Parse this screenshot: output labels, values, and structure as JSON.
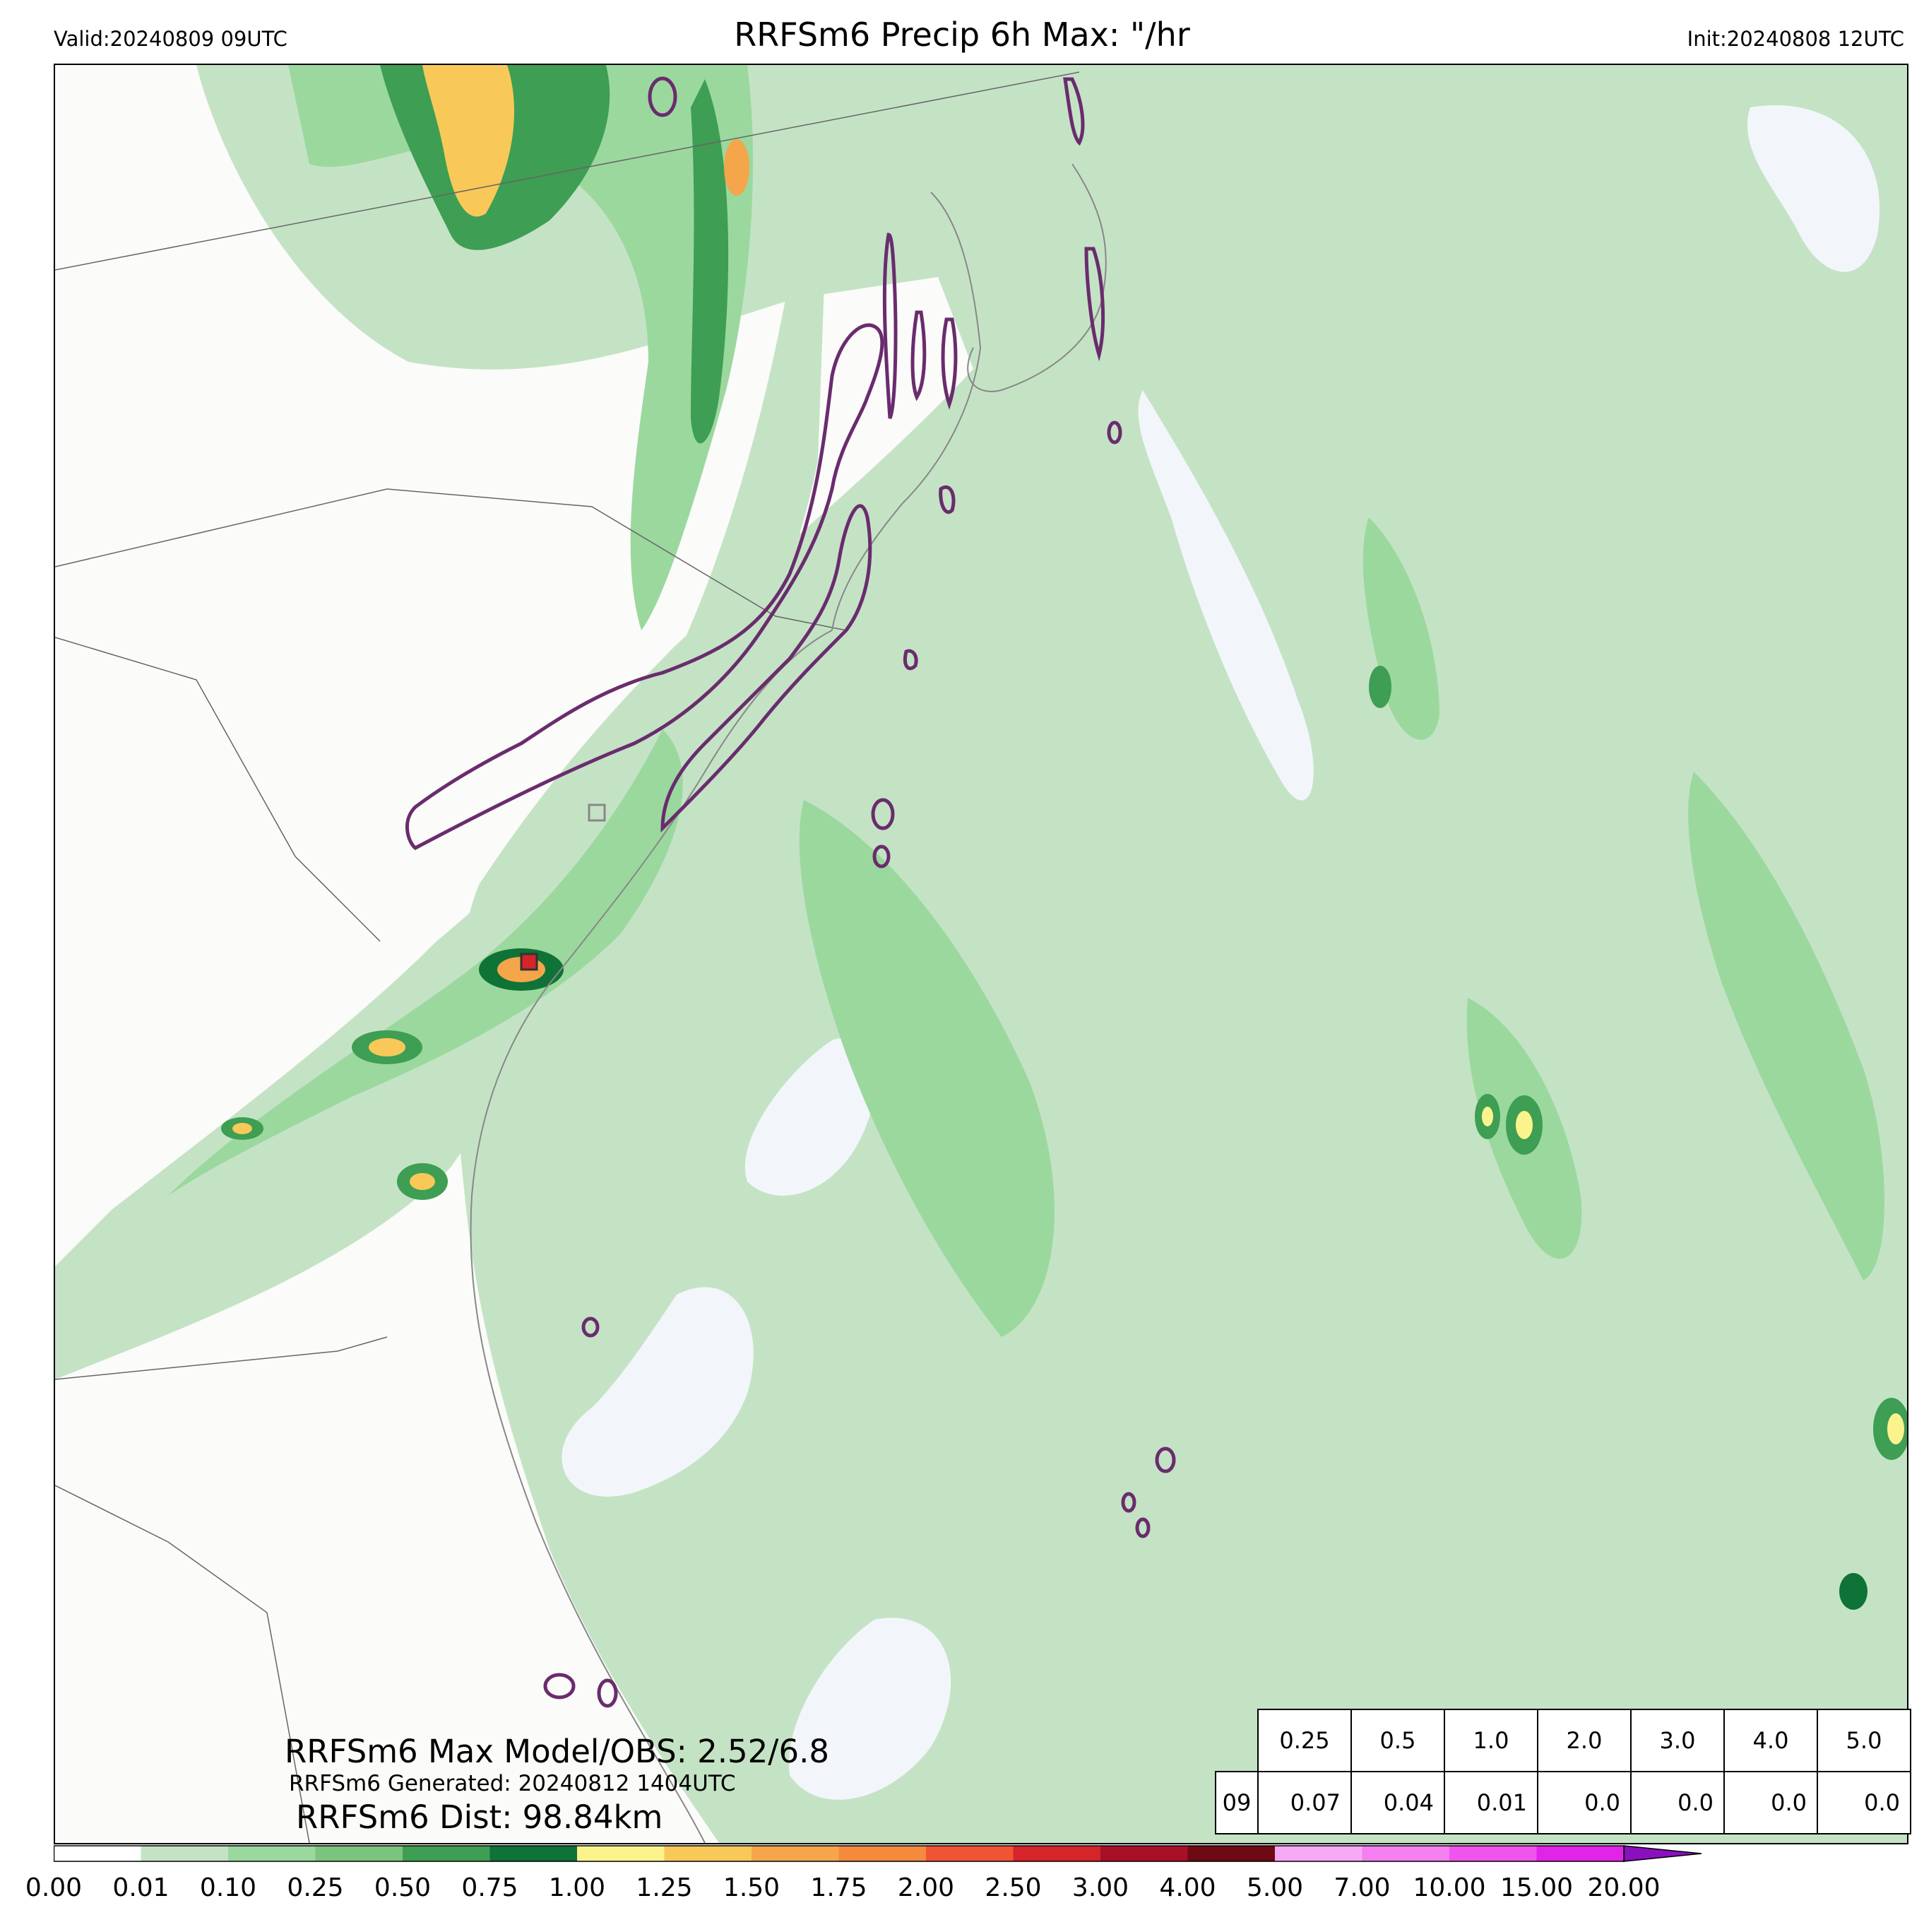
{
  "header": {
    "valid": "Valid:20240809 09UTC",
    "title": "RRFSm6 Precip 6h Max: \"/hr",
    "init": "Init:20240808 12UTC"
  },
  "annotations": {
    "max_model_obs": "RRFSm6 Max Model/OBS: 2.52/6.8",
    "generated": "RRFSm6 Generated: 20240812 1404UTC",
    "distance": "RRFSm6 Dist: 98.84km"
  },
  "stats_table": {
    "thresholds": [
      "0.25",
      "0.5",
      "1.0",
      "2.0",
      "3.0",
      "4.0",
      "5.0"
    ],
    "row_label": "09",
    "values": [
      "0.07",
      "0.04",
      "0.01",
      "0.0",
      "0.0",
      "0.0",
      "0.0"
    ]
  },
  "colorbar": {
    "ticks": [
      "0.00",
      "0.01",
      "0.10",
      "0.25",
      "0.50",
      "0.75",
      "1.00",
      "1.25",
      "1.50",
      "1.75",
      "2.00",
      "2.50",
      "3.00",
      "4.00",
      "5.00",
      "7.00",
      "10.00",
      "15.00",
      "20.00"
    ],
    "colors": [
      "#ffffff",
      "#c4e3c5",
      "#9bd89e",
      "#7bc47e",
      "#3e9e53",
      "#0f7236",
      "#fbf48d",
      "#f8c959",
      "#f5a54a",
      "#f58a3e",
      "#f05433",
      "#d5252a",
      "#a90f26",
      "#6e0a13",
      "#f7a8f4",
      "#f47ff0",
      "#ef55ee",
      "#e224e8",
      "#9e12c7"
    ],
    "extend_color": "#8a0fbf"
  },
  "map_colors": {
    "land": "#fbfbf9",
    "ocean_light": "#c4e3c5",
    "dry_patch": "#f2f6fb",
    "contour": "#6a2c6e",
    "border": "#666666"
  }
}
